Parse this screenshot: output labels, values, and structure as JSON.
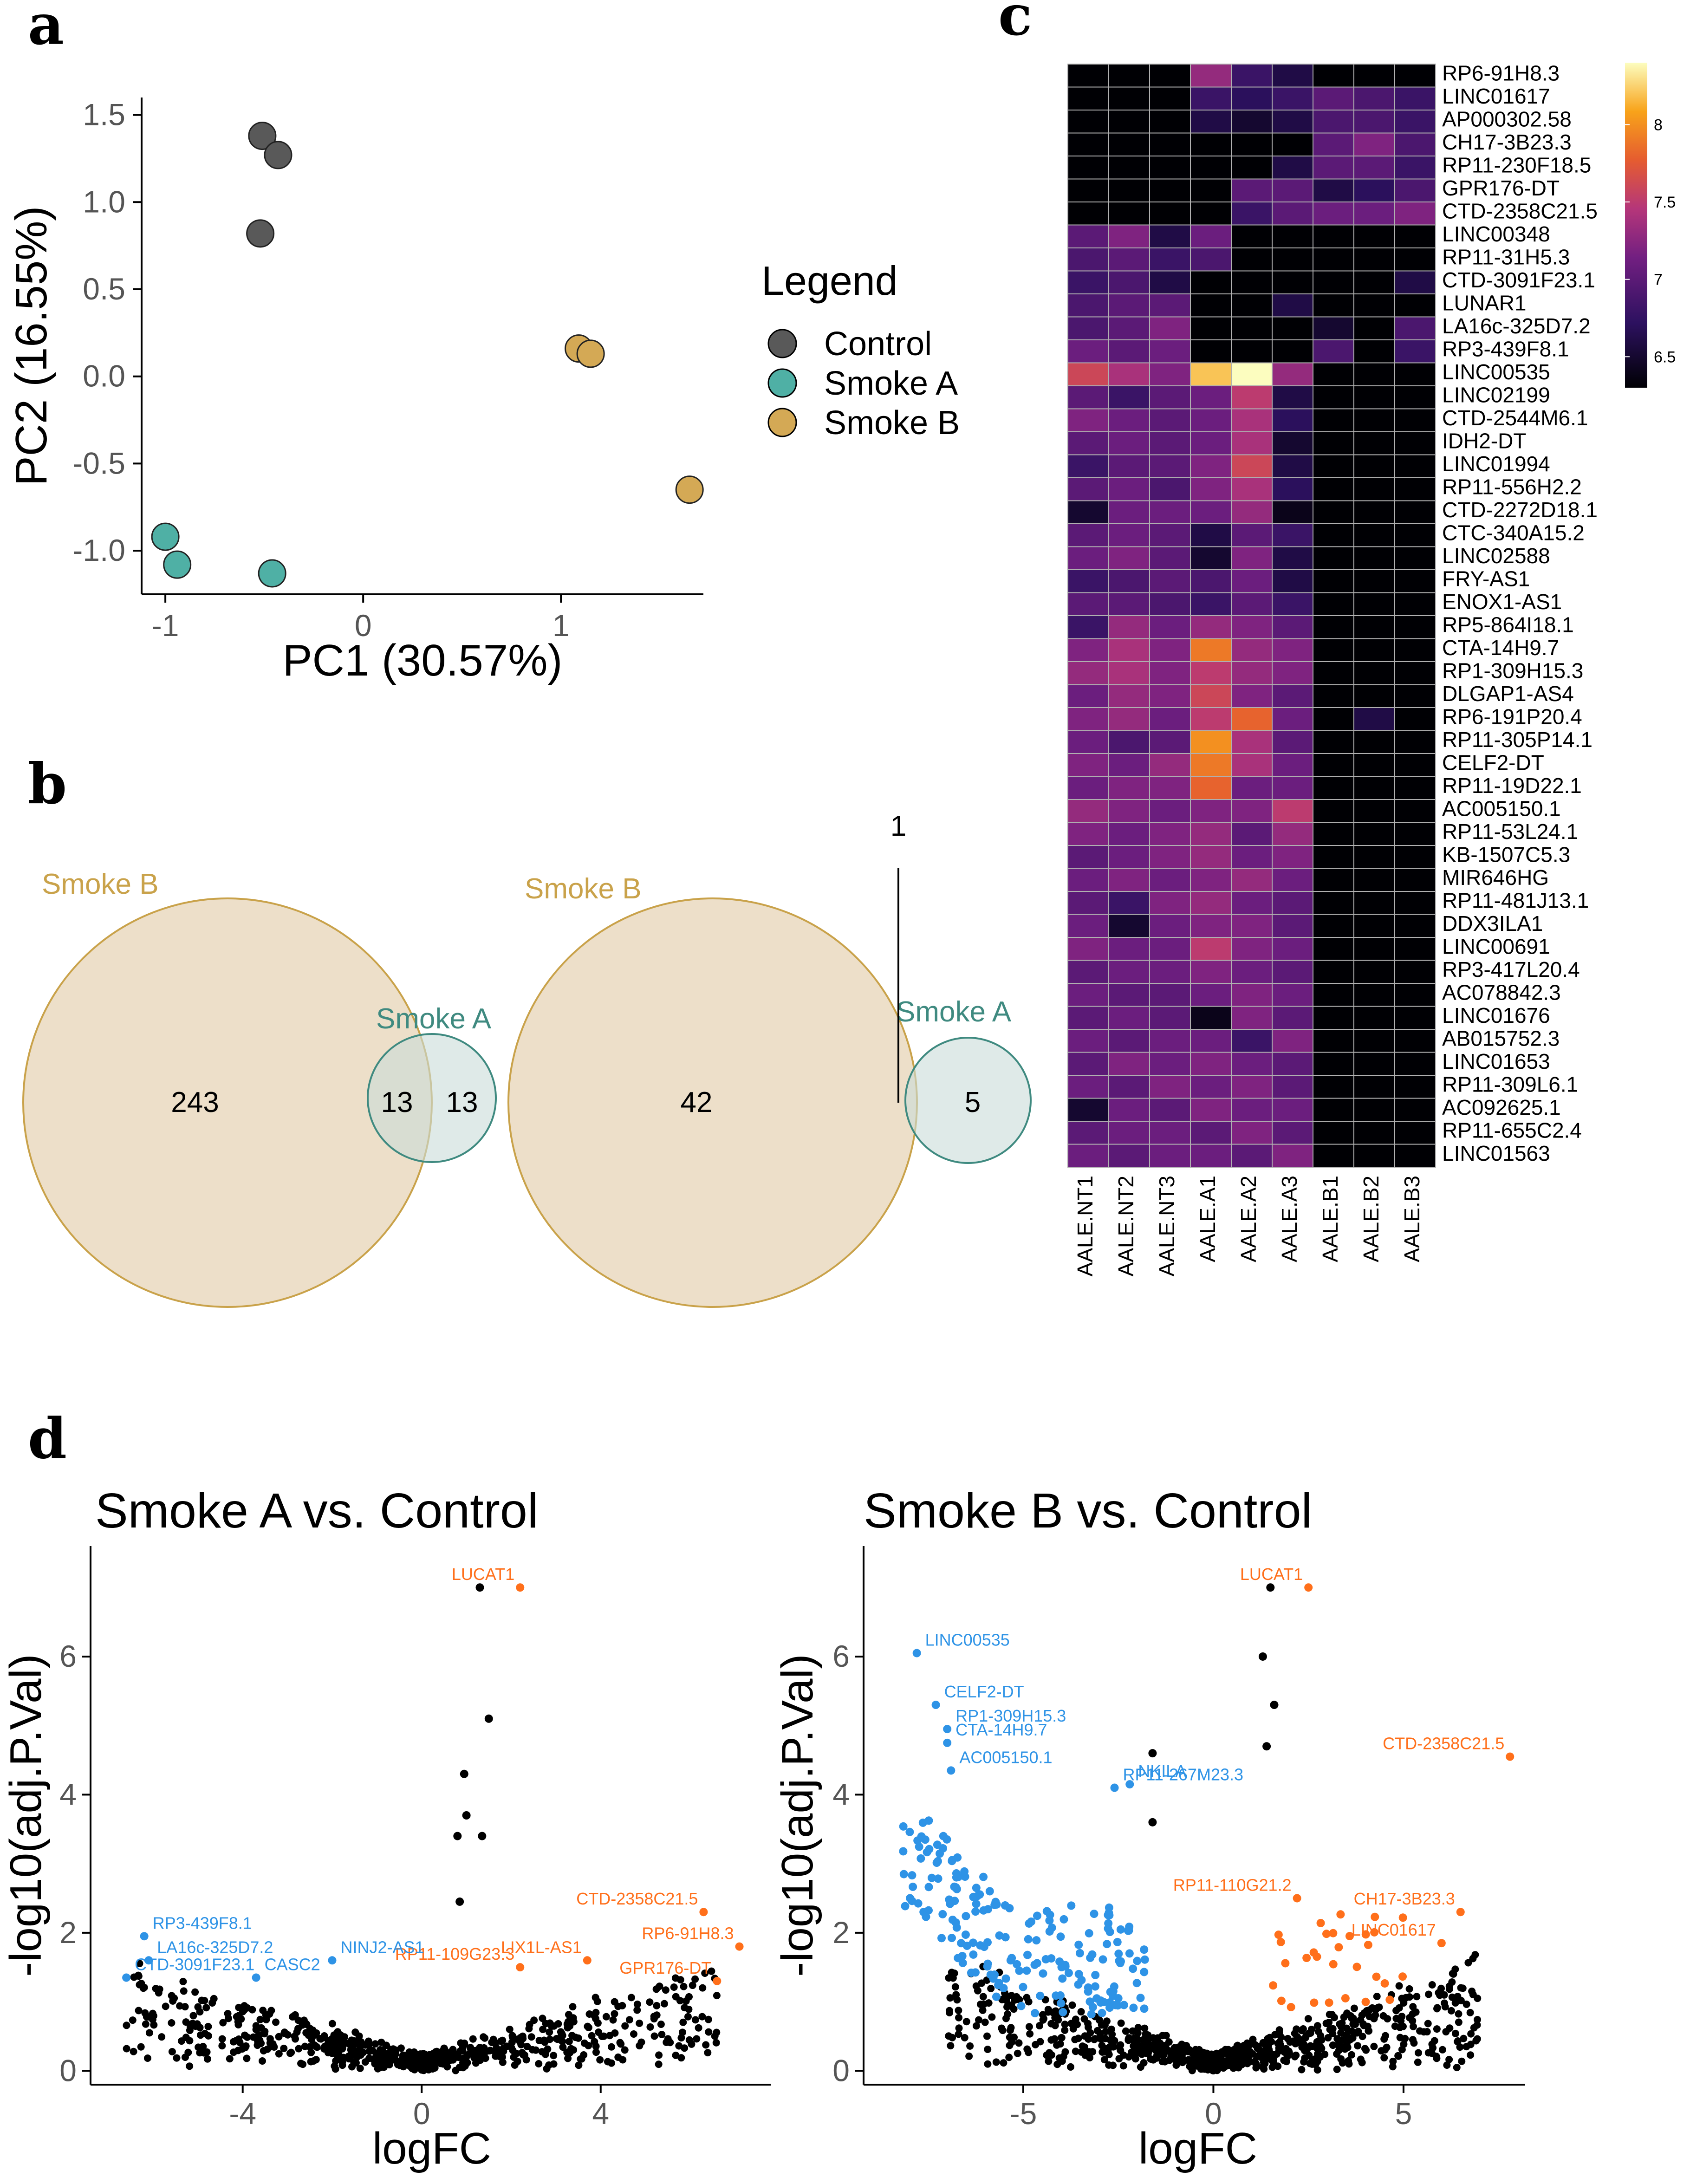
{
  "panels": {
    "a": "a",
    "b": "b",
    "c": "c",
    "d": "d"
  },
  "colors": {
    "control": "#595959",
    "smoke_a": "#4fb0a5",
    "smoke_b": "#d4a955",
    "venn_b_fill": "#ead9c0",
    "venn_b_stroke": "#c9a24a",
    "venn_a_fill": "#c9dcd8",
    "venn_a_stroke": "#3f8a80",
    "down": "#2e93e6",
    "up": "#ff6f1a",
    "ns": "#000000"
  },
  "chart_data": [
    {
      "id": "pca",
      "type": "scatter",
      "xlabel": "PC1 (30.57%)",
      "ylabel": "PC2 (16.55%)",
      "xlim": [
        -1.12,
        1.72
      ],
      "ylim": [
        -1.25,
        1.6
      ],
      "xticks": [
        "-1",
        "0",
        "1"
      ],
      "yticks": [
        "1.5",
        "1.0",
        "0.5",
        "0.0",
        "-0.5",
        "-1.0"
      ],
      "legend_title": "Legend",
      "series": [
        {
          "name": "Control",
          "points": [
            [
              -0.51,
              1.38
            ],
            [
              -0.43,
              1.27
            ],
            [
              -0.52,
              0.82
            ]
          ]
        },
        {
          "name": "Smoke A",
          "points": [
            [
              -1.0,
              -0.92
            ],
            [
              -0.94,
              -1.08
            ],
            [
              -0.46,
              -1.13
            ]
          ]
        },
        {
          "name": "Smoke B",
          "points": [
            [
              1.09,
              0.16
            ],
            [
              1.15,
              0.13
            ],
            [
              1.65,
              -0.65
            ]
          ]
        }
      ]
    },
    {
      "id": "venn",
      "type": "venn",
      "diagrams": [
        {
          "label_b": "Smoke B",
          "label_a": "Smoke A",
          "only_b": "243",
          "both": "13",
          "only_a": "13",
          "extra": ""
        },
        {
          "label_b": "Smoke B",
          "label_a": "Smoke A",
          "only_b": "42",
          "both": "",
          "only_a": "5",
          "extra": "1"
        }
      ]
    },
    {
      "id": "heatmap",
      "type": "heatmap",
      "columns": [
        "AALE.NT1",
        "AALE.NT2",
        "AALE.NT3",
        "AALE.A1",
        "AALE.A2",
        "AALE.A3",
        "AALE.B1",
        "AALE.B2",
        "AALE.B3"
      ],
      "rows": [
        "RP6-91H8.3",
        "LINC01617",
        "AP000302.58",
        "CH17-3B23.3",
        "RP11-230F18.5",
        "GPR176-DT",
        "CTD-2358C21.5",
        "LINC00348",
        "RP11-31H5.3",
        "CTD-3091F23.1",
        "LUNAR1",
        "LA16c-325D7.2",
        "RP3-439F8.1",
        "LINC00535",
        "LINC02199",
        "CTD-2544M6.1",
        "IDH2-DT",
        "LINC01994",
        "RP11-556H2.2",
        "CTD-2272D18.1",
        "CTC-340A15.2",
        "LINC02588",
        "FRY-AS1",
        "ENOX1-AS1",
        "RP5-864I18.1",
        "CTA-14H9.7",
        "RP1-309H15.3",
        "DLGAP1-AS4",
        "RP6-191P20.4",
        "RP11-305P14.1",
        "CELF2-DT",
        "RP11-19D22.1",
        "AC005150.1",
        "RP11-53L24.1",
        "KB-1507C5.3",
        "MIR646HG",
        "RP11-481J13.1",
        "DDX3ILA1",
        "LINC00691",
        "RP3-417L20.4",
        "AC078842.3",
        "LINC01676",
        "AB015752.3",
        "LINC01653",
        "RP11-309L6.1",
        "AC092625.1",
        "RP11-655C2.4",
        "LINC01563"
      ],
      "values": [
        [
          6.3,
          6.3,
          6.3,
          7.3,
          6.8,
          6.6,
          6.3,
          6.3,
          6.3
        ],
        [
          6.3,
          6.3,
          6.3,
          6.8,
          6.7,
          6.8,
          7.0,
          6.9,
          6.8
        ],
        [
          6.3,
          6.3,
          6.3,
          6.6,
          6.5,
          6.6,
          6.9,
          6.9,
          6.8
        ],
        [
          6.3,
          6.3,
          6.3,
          6.3,
          6.3,
          6.3,
          7.0,
          7.2,
          6.9
        ],
        [
          6.3,
          6.3,
          6.3,
          6.3,
          6.3,
          6.6,
          7.0,
          7.0,
          6.8
        ],
        [
          6.3,
          6.3,
          6.3,
          6.3,
          7.0,
          7.0,
          6.6,
          6.7,
          6.9
        ],
        [
          6.3,
          6.3,
          6.3,
          6.3,
          6.8,
          7.0,
          7.1,
          7.1,
          7.2
        ],
        [
          7.0,
          7.2,
          6.6,
          7.1,
          6.3,
          6.3,
          6.3,
          6.3,
          6.3
        ],
        [
          6.9,
          7.0,
          6.8,
          6.9,
          6.3,
          6.3,
          6.3,
          6.3,
          6.3
        ],
        [
          6.8,
          6.9,
          6.6,
          6.3,
          6.3,
          6.3,
          6.3,
          6.3,
          6.6
        ],
        [
          6.9,
          7.0,
          7.0,
          6.3,
          6.3,
          6.6,
          6.3,
          6.3,
          6.3
        ],
        [
          6.9,
          7.0,
          7.2,
          6.3,
          6.3,
          6.3,
          6.5,
          6.3,
          6.9
        ],
        [
          7.1,
          7.0,
          7.1,
          6.3,
          6.3,
          6.3,
          6.9,
          6.3,
          6.8
        ],
        [
          7.6,
          7.4,
          7.2,
          8.2,
          8.4,
          7.3,
          6.3,
          6.3,
          6.3
        ],
        [
          7.0,
          6.8,
          7.0,
          7.1,
          7.5,
          6.6,
          6.3,
          6.3,
          6.3
        ],
        [
          7.2,
          7.1,
          7.0,
          7.1,
          7.4,
          6.7,
          6.3,
          6.3,
          6.3
        ],
        [
          7.0,
          7.1,
          7.0,
          7.1,
          7.4,
          6.5,
          6.3,
          6.3,
          6.3
        ],
        [
          6.8,
          7.0,
          7.0,
          7.2,
          7.6,
          6.6,
          6.3,
          6.3,
          6.3
        ],
        [
          7.0,
          7.1,
          6.9,
          7.2,
          7.4,
          6.7,
          6.3,
          6.3,
          6.3
        ],
        [
          6.5,
          7.1,
          7.1,
          7.1,
          7.3,
          6.4,
          6.3,
          6.3,
          6.3
        ],
        [
          7.0,
          7.1,
          7.0,
          6.6,
          7.0,
          6.8,
          6.3,
          6.3,
          6.3
        ],
        [
          7.1,
          7.2,
          7.0,
          6.5,
          7.2,
          6.6,
          6.3,
          6.3,
          6.3
        ],
        [
          6.8,
          6.9,
          7.0,
          6.9,
          7.1,
          6.6,
          6.3,
          6.3,
          6.3
        ],
        [
          7.0,
          7.0,
          6.9,
          6.8,
          7.0,
          6.8,
          6.3,
          6.3,
          6.3
        ],
        [
          6.8,
          7.3,
          7.1,
          7.3,
          7.2,
          7.0,
          6.3,
          6.3,
          6.3
        ],
        [
          7.2,
          7.4,
          7.2,
          7.9,
          7.3,
          7.2,
          6.3,
          6.3,
          6.3
        ],
        [
          7.3,
          7.4,
          7.2,
          7.5,
          7.3,
          7.2,
          6.3,
          6.3,
          6.3
        ],
        [
          7.1,
          7.3,
          7.2,
          7.6,
          7.2,
          7.0,
          6.3,
          6.3,
          6.3
        ],
        [
          7.2,
          7.3,
          7.1,
          7.5,
          7.8,
          7.1,
          6.3,
          6.6,
          6.3
        ],
        [
          7.1,
          6.9,
          7.0,
          8.0,
          7.4,
          7.0,
          6.3,
          6.3,
          6.3
        ],
        [
          7.2,
          7.1,
          7.3,
          7.9,
          7.4,
          7.1,
          6.3,
          6.3,
          6.3
        ],
        [
          7.1,
          7.2,
          7.2,
          7.8,
          7.1,
          7.1,
          6.3,
          6.3,
          6.3
        ],
        [
          7.3,
          7.2,
          7.1,
          7.2,
          7.2,
          7.5,
          6.3,
          6.3,
          6.3
        ],
        [
          7.2,
          7.1,
          7.2,
          7.3,
          7.0,
          7.3,
          6.3,
          6.3,
          6.3
        ],
        [
          7.0,
          7.1,
          7.2,
          7.3,
          7.1,
          7.2,
          6.3,
          6.3,
          6.3
        ],
        [
          7.1,
          7.2,
          7.1,
          7.2,
          7.3,
          7.1,
          6.3,
          6.3,
          6.3
        ],
        [
          7.0,
          6.8,
          7.2,
          7.3,
          7.1,
          7.0,
          6.3,
          6.3,
          6.3
        ],
        [
          7.1,
          6.5,
          7.1,
          7.2,
          7.2,
          7.0,
          6.3,
          6.3,
          6.3
        ],
        [
          7.2,
          7.1,
          7.1,
          7.5,
          7.2,
          7.1,
          6.3,
          6.3,
          6.3
        ],
        [
          7.0,
          7.1,
          7.1,
          7.2,
          7.1,
          7.0,
          6.3,
          6.3,
          6.3
        ],
        [
          7.1,
          7.0,
          7.0,
          7.1,
          7.2,
          7.1,
          6.3,
          6.3,
          6.3
        ],
        [
          7.0,
          7.1,
          7.0,
          6.4,
          7.2,
          7.0,
          6.3,
          6.3,
          6.3
        ],
        [
          7.1,
          7.0,
          7.1,
          7.1,
          6.8,
          7.2,
          6.3,
          6.3,
          6.3
        ],
        [
          7.0,
          7.2,
          7.1,
          7.2,
          7.1,
          7.0,
          6.3,
          6.3,
          6.3
        ],
        [
          7.1,
          7.0,
          7.2,
          7.1,
          7.2,
          7.0,
          6.3,
          6.3,
          6.3
        ],
        [
          6.5,
          7.1,
          7.0,
          7.2,
          7.1,
          7.1,
          6.3,
          6.3,
          6.3
        ],
        [
          7.0,
          7.1,
          7.1,
          7.0,
          7.2,
          7.0,
          6.3,
          6.3,
          6.3
        ],
        [
          7.1,
          7.0,
          7.1,
          7.1,
          7.0,
          7.2,
          6.3,
          6.3,
          6.3
        ]
      ],
      "color_scale": {
        "min": 6.3,
        "max": 8.4,
        "ticks": [
          "8",
          "7.5",
          "7",
          "6.5"
        ]
      }
    },
    {
      "id": "volcano_a",
      "type": "scatter",
      "title": "Smoke A vs. Control",
      "xlabel": "logFC",
      "ylabel": "-log10(adj.P.Val)",
      "xlim": [
        -7.4,
        7.8
      ],
      "ylim": [
        -0.2,
        7.6
      ],
      "xticks": [
        "-4",
        "0",
        "4"
      ],
      "yticks": [
        "0",
        "2",
        "4",
        "6"
      ],
      "highlight": [
        {
          "x": 2.2,
          "y": 7.0,
          "class": "up",
          "label": "LUCAT1"
        },
        {
          "x": 1.3,
          "y": 7.0,
          "class": "ns",
          "label": ""
        },
        {
          "x": 1.5,
          "y": 5.1,
          "class": "ns",
          "label": ""
        },
        {
          "x": 0.95,
          "y": 4.3,
          "class": "ns",
          "label": ""
        },
        {
          "x": 1.0,
          "y": 3.7,
          "class": "ns",
          "label": ""
        },
        {
          "x": 0.8,
          "y": 3.4,
          "class": "ns",
          "label": ""
        },
        {
          "x": 1.35,
          "y": 3.4,
          "class": "ns",
          "label": ""
        },
        {
          "x": 0.85,
          "y": 2.45,
          "class": "ns",
          "label": ""
        },
        {
          "x": 6.3,
          "y": 2.3,
          "class": "up",
          "label": "CTD-2358C21.5"
        },
        {
          "x": 7.1,
          "y": 1.8,
          "class": "up",
          "label": "RP6-91H8.3"
        },
        {
          "x": 3.7,
          "y": 1.6,
          "class": "up",
          "label": "LIX1L-AS1"
        },
        {
          "x": 2.2,
          "y": 1.5,
          "class": "up",
          "label": "RP11-109G23.3"
        },
        {
          "x": 6.6,
          "y": 1.3,
          "class": "up",
          "label": "GPR176-DT"
        },
        {
          "x": -6.2,
          "y": 1.95,
          "class": "down",
          "label": "RP3-439F8.1"
        },
        {
          "x": -6.1,
          "y": 1.6,
          "class": "down",
          "label": "LA16c-325D7.2"
        },
        {
          "x": -6.6,
          "y": 1.35,
          "class": "down",
          "label": "CTD-3091F23.1"
        },
        {
          "x": -3.7,
          "y": 1.35,
          "class": "down",
          "label": "CASC2"
        },
        {
          "x": -2.0,
          "y": 1.6,
          "class": "down",
          "label": "NINJ2-AS1"
        }
      ]
    },
    {
      "id": "volcano_b",
      "type": "scatter",
      "title": "Smoke B vs. Control",
      "xlabel": "logFC",
      "ylabel": "-log10(adj.P.Val)",
      "xlim": [
        -9.2,
        8.2
      ],
      "ylim": [
        -0.2,
        7.6
      ],
      "xticks": [
        "-5",
        "0",
        "5"
      ],
      "yticks": [
        "0",
        "2",
        "4",
        "6"
      ],
      "highlight": [
        {
          "x": 2.5,
          "y": 7.0,
          "class": "up",
          "label": "LUCAT1"
        },
        {
          "x": 1.5,
          "y": 7.0,
          "class": "ns",
          "label": ""
        },
        {
          "x": -7.8,
          "y": 6.05,
          "class": "down",
          "label": "LINC00535"
        },
        {
          "x": -7.3,
          "y": 5.3,
          "class": "down",
          "label": "CELF2-DT"
        },
        {
          "x": -7.0,
          "y": 4.95,
          "class": "down",
          "label": "RP1-309H15.3"
        },
        {
          "x": -7.0,
          "y": 4.75,
          "class": "down",
          "label": "CTA-14H9.7"
        },
        {
          "x": -6.9,
          "y": 4.35,
          "class": "down",
          "label": "AC005150.1"
        },
        {
          "x": -2.2,
          "y": 4.15,
          "class": "down",
          "label": "NKILA"
        },
        {
          "x": -2.6,
          "y": 4.1,
          "class": "down",
          "label": "RP11-267M23.3"
        },
        {
          "x": 7.8,
          "y": 4.55,
          "class": "up",
          "label": "CTD-2358C21.5"
        },
        {
          "x": 2.2,
          "y": 2.5,
          "class": "up",
          "label": "RP11-110G21.2"
        },
        {
          "x": 6.5,
          "y": 2.3,
          "class": "up",
          "label": "CH17-3B23.3"
        },
        {
          "x": 6.0,
          "y": 1.85,
          "class": "up",
          "label": "LINC01617"
        },
        {
          "x": 1.3,
          "y": 6.0,
          "class": "ns",
          "label": ""
        },
        {
          "x": 1.6,
          "y": 5.3,
          "class": "ns",
          "label": ""
        },
        {
          "x": 1.4,
          "y": 4.7,
          "class": "ns",
          "label": ""
        },
        {
          "x": -1.6,
          "y": 3.6,
          "class": "ns",
          "label": ""
        },
        {
          "x": -1.6,
          "y": 4.6,
          "class": "ns",
          "label": ""
        }
      ]
    }
  ]
}
